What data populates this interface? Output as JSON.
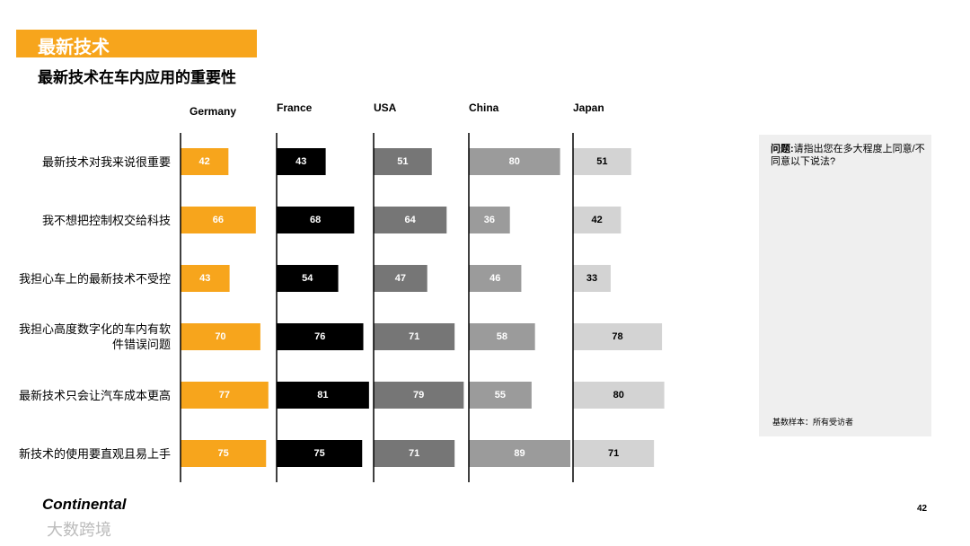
{
  "header": {
    "title": "最新技术",
    "subtitle": "最新技术在车内应用的重要性"
  },
  "chart_data": {
    "type": "bar",
    "categories": [
      "最新技术对我来说很重要",
      "我不想把控制权交给科技",
      "我担心车上的最新技术不受控",
      "我担心高度数字化的车内有软件错误问题",
      "最新技术只会让汽车成本更高",
      "新技术的使用要直观且易上手"
    ],
    "series": [
      {
        "name": "Germany",
        "color": "#f7a51c",
        "label_color": "#ffffff",
        "values": [
          42,
          66,
          43,
          70,
          77,
          75
        ]
      },
      {
        "name": "France",
        "color": "#000000",
        "label_color": "#ffffff",
        "values": [
          43,
          68,
          54,
          76,
          81,
          75
        ]
      },
      {
        "name": "USA",
        "color": "#767676",
        "label_color": "#ffffff",
        "values": [
          51,
          64,
          47,
          71,
          79,
          71
        ]
      },
      {
        "name": "China",
        "color": "#9b9b9b",
        "label_color": "#ffffff",
        "values": [
          80,
          36,
          46,
          58,
          55,
          89
        ]
      },
      {
        "name": "Japan",
        "color": "#d3d3d3",
        "label_color": "#000000",
        "values": [
          51,
          42,
          33,
          78,
          80,
          71
        ]
      }
    ]
  },
  "note": {
    "label": "问题:",
    "text": "请指出您在多大程度上同意/不同意以下说法?",
    "base": "基数样本：所有受访者"
  },
  "footer": {
    "logo": "Continental",
    "page": 42,
    "watermark": "大数跨境"
  }
}
